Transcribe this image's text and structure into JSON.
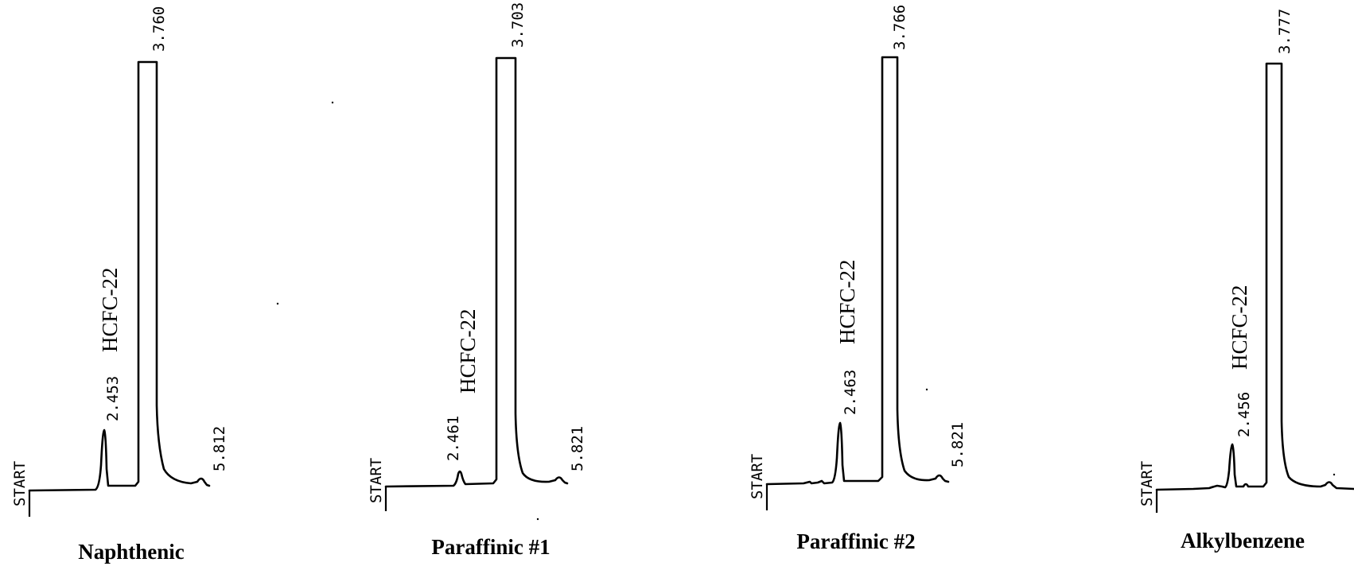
{
  "chart_data": [
    {
      "type": "line",
      "caption": "Naphthenic",
      "start_label": "START",
      "compound_label": "HCFC-22",
      "peaks": [
        {
          "time": 2.453,
          "label": "2.453"
        },
        {
          "time": 3.76,
          "label": "3.760"
        },
        {
          "time": 5.812,
          "label": "5.812"
        }
      ]
    },
    {
      "type": "line",
      "caption": "Paraffinic #1",
      "start_label": "START",
      "compound_label": "HCFC-22",
      "peaks": [
        {
          "time": 2.461,
          "label": "2.461"
        },
        {
          "time": 3.703,
          "label": "3.703"
        },
        {
          "time": 5.821,
          "label": "5.821"
        }
      ]
    },
    {
      "type": "line",
      "caption": "Paraffinic #2",
      "start_label": "START",
      "compound_label": "HCFC-22",
      "peaks": [
        {
          "time": 2.463,
          "label": "2.463"
        },
        {
          "time": 3.766,
          "label": "3.766"
        },
        {
          "time": 5.821,
          "label": "5.821"
        }
      ]
    },
    {
      "type": "line",
      "caption": "Alkylbenzene",
      "start_label": "START",
      "compound_label": "HCFC-22",
      "peaks": [
        {
          "time": 2.456,
          "label": "2.456"
        },
        {
          "time": 3.777,
          "label": "3.777"
        }
      ]
    }
  ]
}
